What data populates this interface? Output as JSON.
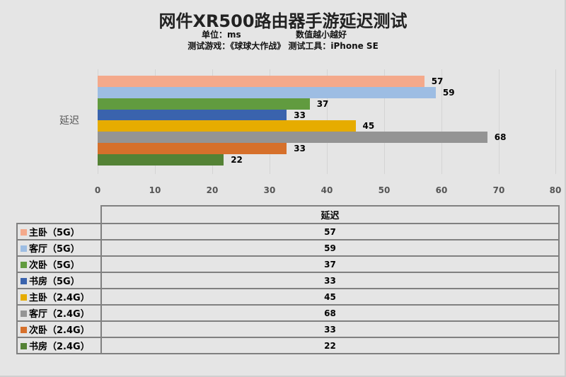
{
  "header": {
    "title": "网件XR500路由器手游延迟测试",
    "unit": "单位：ms",
    "note": "数值越小越好",
    "test_info": "测试游戏：《球球大作战》 测试工具：iPhone SE"
  },
  "chart_data": {
    "type": "bar",
    "orientation": "horizontal",
    "title": "网件XR500路由器手游延迟测试",
    "subtitle": "单位：ms 数值越小越好 / 测试游戏：《球球大作战》 测试工具：iPhone SE",
    "categories": [
      "延迟"
    ],
    "series": [
      {
        "name": "主卧（5G）",
        "values": [
          57
        ],
        "color": "#f4a98b"
      },
      {
        "name": "客厅（5G）",
        "values": [
          59
        ],
        "color": "#9dbde3"
      },
      {
        "name": "次卧（5G）",
        "values": [
          37
        ],
        "color": "#619b3f"
      },
      {
        "name": "书房（5G）",
        "values": [
          33
        ],
        "color": "#3a63ad"
      },
      {
        "name": "主卧（2.4G）",
        "values": [
          45
        ],
        "color": "#e6ac00"
      },
      {
        "name": "客厅（2.4G）",
        "values": [
          68
        ],
        "color": "#949494"
      },
      {
        "name": "次卧（2.4G）",
        "values": [
          33
        ],
        "color": "#d6702b"
      },
      {
        "name": "书房（2.4G）",
        "values": [
          22
        ],
        "color": "#548235"
      }
    ],
    "xlabel": "",
    "ylabel": "",
    "xlim": [
      0,
      80
    ],
    "xticks": [
      "0",
      "10",
      "20",
      "30",
      "40",
      "50",
      "60",
      "70",
      "80"
    ],
    "grid": true,
    "data_table": true,
    "legend_position": "data-table"
  },
  "bars": [
    {
      "label": "57",
      "color": "#f4a98b"
    },
    {
      "label": "59",
      "color": "#9dbde3"
    },
    {
      "label": "37",
      "color": "#619b3f"
    },
    {
      "label": "33",
      "color": "#3a63ad"
    },
    {
      "label": "45",
      "color": "#e6ac00"
    },
    {
      "label": "68",
      "color": "#949494"
    },
    {
      "label": "33",
      "color": "#d6702b"
    },
    {
      "label": "22",
      "color": "#548235"
    }
  ],
  "axis": {
    "category": "延迟",
    "ticks": [
      "0",
      "10",
      "20",
      "30",
      "40",
      "50",
      "60",
      "70",
      "80"
    ]
  },
  "table": {
    "header": "延迟",
    "rows": [
      {
        "label": "主卧（5G）",
        "value": "57",
        "color": "#f4a98b"
      },
      {
        "label": "客厅（5G）",
        "value": "59",
        "color": "#9dbde3"
      },
      {
        "label": "次卧（5G）",
        "value": "37",
        "color": "#619b3f"
      },
      {
        "label": "书房（5G）",
        "value": "33",
        "color": "#3a63ad"
      },
      {
        "label": "主卧（2.4G）",
        "value": "45",
        "color": "#e6ac00"
      },
      {
        "label": "客厅（2.4G）",
        "value": "68",
        "color": "#949494"
      },
      {
        "label": "次卧（2.4G）",
        "value": "33",
        "color": "#d6702b"
      },
      {
        "label": "书房（2.4G）",
        "value": "22",
        "color": "#548235"
      }
    ]
  }
}
